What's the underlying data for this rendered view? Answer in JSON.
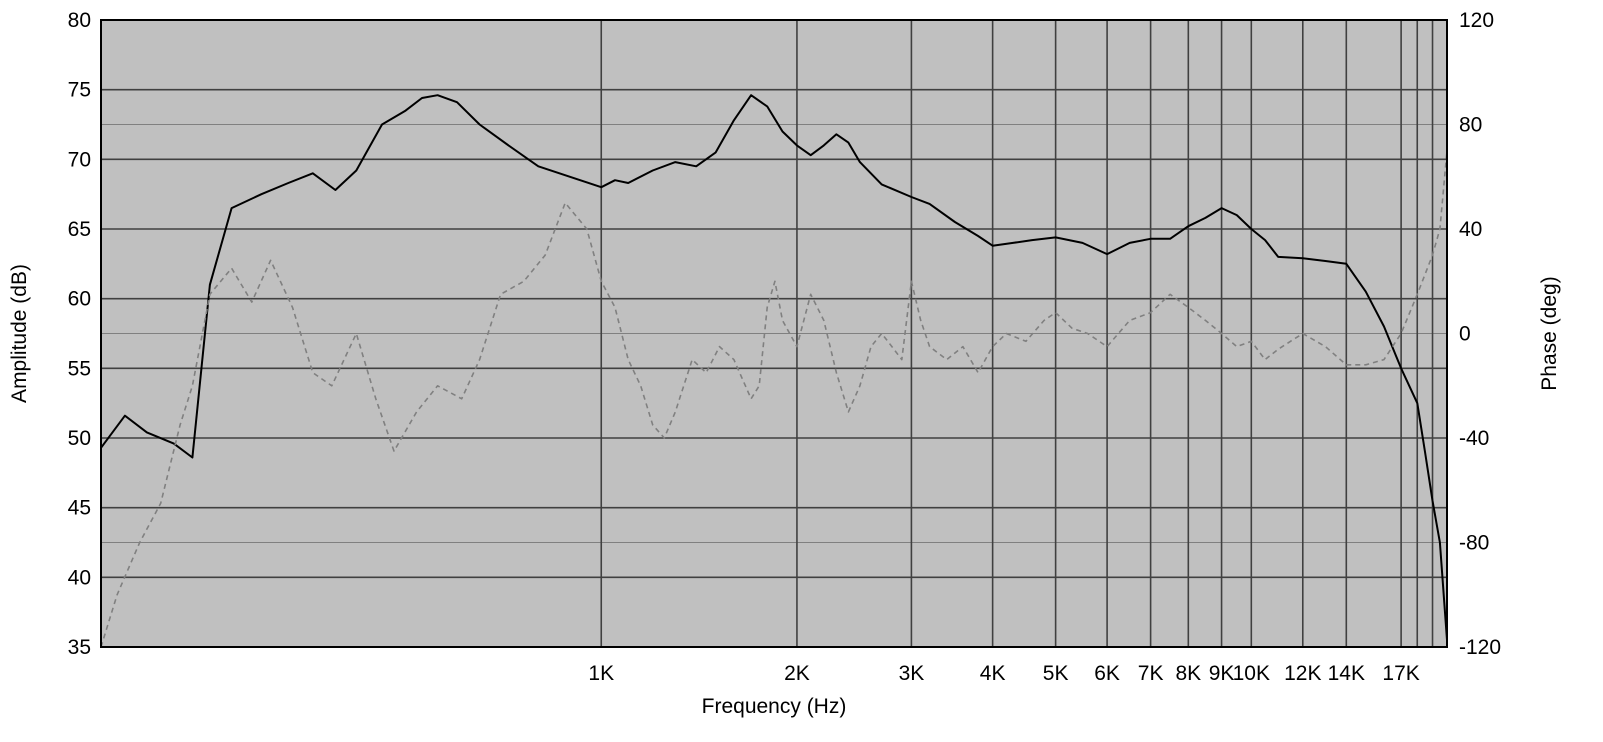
{
  "chart_data": {
    "type": "line",
    "xlabel": "Frequency (Hz)",
    "ylabel_left": "Amplitude (dB)",
    "ylabel_right": "Phase (deg)",
    "x_scale": "log",
    "x_range_hz": [
      170,
      20000
    ],
    "x_tick_labels": [
      {
        "hz": 1000,
        "label": "1K"
      },
      {
        "hz": 2000,
        "label": "2K"
      },
      {
        "hz": 3000,
        "label": "3K"
      },
      {
        "hz": 4000,
        "label": "4K"
      },
      {
        "hz": 5000,
        "label": "5K"
      },
      {
        "hz": 6000,
        "label": "6K"
      },
      {
        "hz": 7000,
        "label": "7K"
      },
      {
        "hz": 8000,
        "label": "8K"
      },
      {
        "hz": 9000,
        "label": "9K"
      },
      {
        "hz": 10000,
        "label": "10K"
      },
      {
        "hz": 12000,
        "label": "12K"
      },
      {
        "hz": 14000,
        "label": "14K"
      },
      {
        "hz": 17000,
        "label": "17K"
      }
    ],
    "y_left_range": [
      35,
      80
    ],
    "y_left_ticks": [
      80,
      75,
      70,
      65,
      60,
      55,
      50,
      45,
      40,
      35
    ],
    "y_right_range": [
      -120,
      120
    ],
    "y_right_ticks": [
      120,
      80,
      40,
      0,
      -40,
      -80,
      -120
    ],
    "grid": true,
    "colors": {
      "plot_background": "#c0c0c0",
      "grid": "#404040",
      "amplitude": "#000000",
      "phase": "#808080"
    },
    "series": [
      {
        "name": "",
        "axis": "left",
        "style": "solid",
        "points": [
          [
            170,
            49.3
          ],
          [
            185,
            51.6
          ],
          [
            200,
            50.4
          ],
          [
            220,
            49.6
          ],
          [
            235,
            48.6
          ],
          [
            250,
            61.0
          ],
          [
            270,
            66.5
          ],
          [
            300,
            67.5
          ],
          [
            330,
            68.3
          ],
          [
            360,
            69.0
          ],
          [
            390,
            67.8
          ],
          [
            420,
            69.2
          ],
          [
            460,
            72.5
          ],
          [
            500,
            73.5
          ],
          [
            530,
            74.4
          ],
          [
            560,
            74.6
          ],
          [
            600,
            74.1
          ],
          [
            650,
            72.5
          ],
          [
            720,
            71.0
          ],
          [
            800,
            69.5
          ],
          [
            1000,
            68.0
          ],
          [
            1050,
            68.5
          ],
          [
            1100,
            68.3
          ],
          [
            1200,
            69.2
          ],
          [
            1300,
            69.8
          ],
          [
            1400,
            69.5
          ],
          [
            1500,
            70.5
          ],
          [
            1600,
            72.8
          ],
          [
            1700,
            74.6
          ],
          [
            1800,
            73.8
          ],
          [
            1900,
            72.0
          ],
          [
            2000,
            71.0
          ],
          [
            2100,
            70.3
          ],
          [
            2200,
            71.0
          ],
          [
            2300,
            71.8
          ],
          [
            2400,
            71.2
          ],
          [
            2500,
            69.8
          ],
          [
            2700,
            68.2
          ],
          [
            3000,
            67.3
          ],
          [
            3200,
            66.8
          ],
          [
            3500,
            65.5
          ],
          [
            3800,
            64.5
          ],
          [
            4000,
            63.8
          ],
          [
            4300,
            64.0
          ],
          [
            4600,
            64.2
          ],
          [
            5000,
            64.4
          ],
          [
            5500,
            64.0
          ],
          [
            6000,
            63.2
          ],
          [
            6500,
            64.0
          ],
          [
            7000,
            64.3
          ],
          [
            7500,
            64.3
          ],
          [
            8000,
            65.2
          ],
          [
            8500,
            65.8
          ],
          [
            9000,
            66.5
          ],
          [
            9500,
            66.0
          ],
          [
            10000,
            65.0
          ],
          [
            10500,
            64.2
          ],
          [
            11000,
            63.0
          ],
          [
            12000,
            62.9
          ],
          [
            13000,
            62.7
          ],
          [
            14000,
            62.5
          ],
          [
            15000,
            60.5
          ],
          [
            16000,
            58.0
          ],
          [
            17000,
            55.0
          ],
          [
            18000,
            52.5
          ],
          [
            18500,
            49.0
          ],
          [
            19000,
            45.5
          ],
          [
            19500,
            42.5
          ],
          [
            20000,
            35.5
          ]
        ]
      },
      {
        "name": "",
        "axis": "right",
        "style": "dashed",
        "points": [
          [
            170,
            -120
          ],
          [
            180,
            -100
          ],
          [
            195,
            -80
          ],
          [
            210,
            -65
          ],
          [
            225,
            -35
          ],
          [
            235,
            -20
          ],
          [
            250,
            15
          ],
          [
            270,
            25
          ],
          [
            290,
            12
          ],
          [
            310,
            28
          ],
          [
            335,
            10
          ],
          [
            360,
            -15
          ],
          [
            385,
            -20
          ],
          [
            420,
            0
          ],
          [
            450,
            -25
          ],
          [
            480,
            -45
          ],
          [
            520,
            -30
          ],
          [
            560,
            -20
          ],
          [
            610,
            -25
          ],
          [
            650,
            -10
          ],
          [
            700,
            15
          ],
          [
            760,
            20
          ],
          [
            820,
            30
          ],
          [
            880,
            50
          ],
          [
            950,
            40
          ],
          [
            1000,
            20
          ],
          [
            1050,
            10
          ],
          [
            1100,
            -10
          ],
          [
            1150,
            -20
          ],
          [
            1200,
            -35
          ],
          [
            1250,
            -40
          ],
          [
            1300,
            -30
          ],
          [
            1380,
            -10
          ],
          [
            1450,
            -15
          ],
          [
            1520,
            -5
          ],
          [
            1600,
            -10
          ],
          [
            1700,
            -25
          ],
          [
            1750,
            -20
          ],
          [
            1800,
            10
          ],
          [
            1850,
            20
          ],
          [
            1900,
            5
          ],
          [
            2000,
            -5
          ],
          [
            2100,
            15
          ],
          [
            2200,
            5
          ],
          [
            2300,
            -15
          ],
          [
            2400,
            -30
          ],
          [
            2500,
            -20
          ],
          [
            2600,
            -5
          ],
          [
            2700,
            0
          ],
          [
            2800,
            -5
          ],
          [
            2900,
            -10
          ],
          [
            3000,
            20
          ],
          [
            3100,
            5
          ],
          [
            3200,
            -5
          ],
          [
            3400,
            -10
          ],
          [
            3600,
            -5
          ],
          [
            3800,
            -15
          ],
          [
            4000,
            -5
          ],
          [
            4200,
            0
          ],
          [
            4500,
            -3
          ],
          [
            4800,
            5
          ],
          [
            5000,
            8
          ],
          [
            5300,
            2
          ],
          [
            5600,
            0
          ],
          [
            6000,
            -5
          ],
          [
            6500,
            5
          ],
          [
            7000,
            8
          ],
          [
            7500,
            15
          ],
          [
            8000,
            10
          ],
          [
            8500,
            5
          ],
          [
            9000,
            0
          ],
          [
            9500,
            -5
          ],
          [
            10000,
            -3
          ],
          [
            10500,
            -10
          ],
          [
            11000,
            -6
          ],
          [
            12000,
            0
          ],
          [
            13000,
            -5
          ],
          [
            14000,
            -12
          ],
          [
            15000,
            -12
          ],
          [
            16000,
            -10
          ],
          [
            17000,
            0
          ],
          [
            18000,
            15
          ],
          [
            19000,
            30
          ],
          [
            19500,
            40
          ],
          [
            20000,
            70
          ]
        ]
      }
    ]
  }
}
